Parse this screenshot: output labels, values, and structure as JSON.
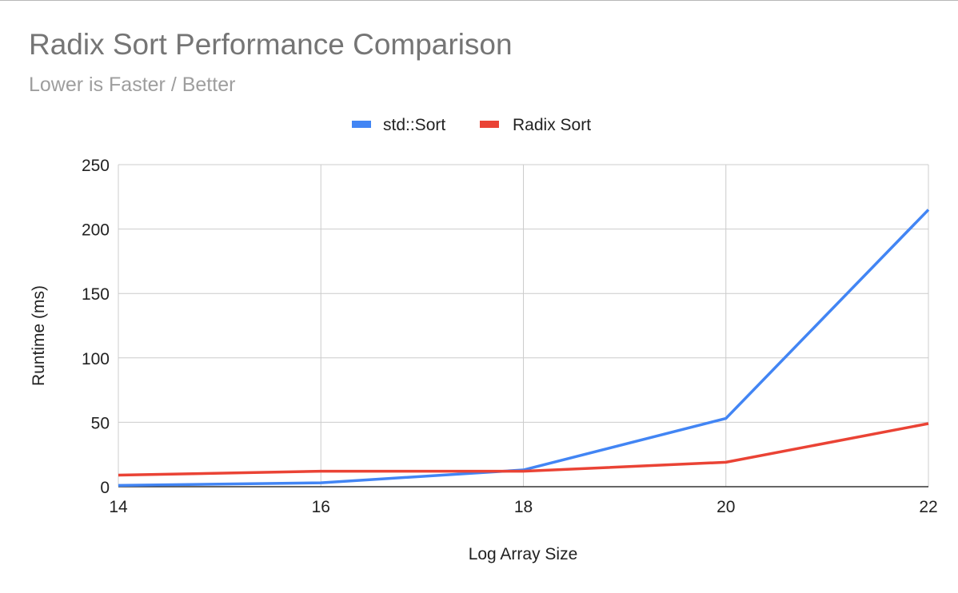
{
  "chart_data": {
    "type": "line",
    "title": "Radix Sort Performance Comparison",
    "subtitle": "Lower is Faster / Better",
    "xlabel": "Log Array Size",
    "ylabel": "Runtime (ms)",
    "x": [
      14,
      16,
      18,
      20,
      22
    ],
    "xlim": [
      14,
      22
    ],
    "ylim": [
      0,
      250
    ],
    "x_ticks": [
      14,
      16,
      18,
      20,
      22
    ],
    "y_ticks": [
      0,
      50,
      100,
      150,
      200,
      250
    ],
    "grid": true,
    "legend_position": "top-center",
    "series": [
      {
        "name": "std::Sort",
        "color": "#4285f4",
        "values": [
          1,
          3,
          13,
          53,
          215
        ]
      },
      {
        "name": "Radix Sort",
        "color": "#ea4335",
        "values": [
          9,
          12,
          12,
          19,
          49
        ]
      }
    ]
  }
}
